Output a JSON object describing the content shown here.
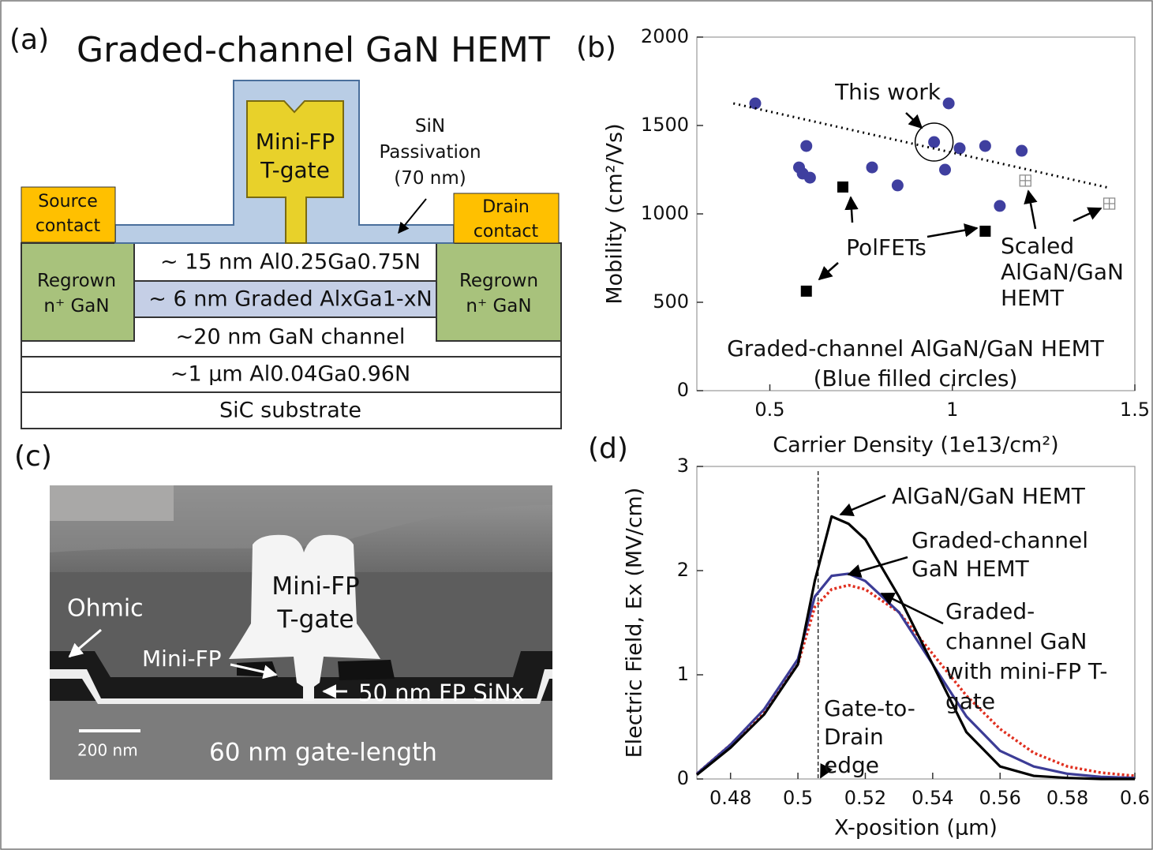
{
  "panel_a": {
    "label": "(a)",
    "title": "Graded-channel GaN HEMT",
    "gate": "Mini-FP T-gate",
    "passivation": "SiN Passivation (70 nm)",
    "source": "Source contact",
    "drain": "Drain contact",
    "regrown": [
      "Regrown n⁺ GaN",
      "Regrown n⁺ GaN"
    ],
    "layers": [
      "~ 15 nm Al0.25Ga0.75N",
      "~ 6 nm Graded AlxGa1-xN",
      "~20 nm GaN channel",
      "~1 µm Al0.04Ga0.96N",
      "SiC substrate"
    ]
  },
  "panel_c": {
    "label": "(c)",
    "ohmic": "Ohmic",
    "gate": "Mini-FP T-gate",
    "mini_fp": "Mini-FP",
    "sinx": "50 nm FP SiNx",
    "scale_bar": "200 nm",
    "gate_length": "60 nm gate-length"
  },
  "chart_data": [
    {
      "type": "scatter",
      "panel_label": "(b)",
      "xlabel": "Carrier Density (1e13/cm²)",
      "ylabel": "Mobility (cm²/Vs)",
      "xlim": [
        0.3,
        1.5
      ],
      "xticks": [
        0.5,
        1,
        1.5
      ],
      "ylim": [
        0,
        2000
      ],
      "yticks": [
        0,
        500,
        1000,
        1500,
        2000
      ],
      "annotations": [
        "This work",
        "(Blue filled circles)"
      ],
      "series": [
        {
          "name": "Graded-channel AlGaN/GaN HEMT",
          "color": "#3f3f9f",
          "marker": "circle",
          "x": [
            0.46,
            0.6,
            0.58,
            0.59,
            0.61,
            0.78,
            0.85,
            0.95,
            0.99,
            0.98,
            1.02,
            1.09,
            1.19,
            1.13
          ],
          "values": [
            1625,
            1384,
            1263,
            1228,
            1205,
            1263,
            1161,
            1406,
            1625,
            1250,
            1371,
            1384,
            1357,
            1045
          ]
        },
        {
          "name": "PolFETs",
          "color": "#000000",
          "marker": "square",
          "x": [
            0.7,
            1.09,
            0.6
          ],
          "values": [
            1152,
            902,
            563
          ]
        },
        {
          "name": "Scaled AlGaN/GaN HEMT",
          "color": "#8a8a8a",
          "marker": "crossed-square",
          "x": [
            1.2,
            1.43
          ],
          "values": [
            1188,
            1058
          ]
        },
        {
          "color": "#000000",
          "marker": "dotted-line",
          "x": [
            0.4,
            1.43
          ],
          "values": [
            1625,
            1147
          ]
        }
      ]
    },
    {
      "type": "line",
      "panel_label": "(d)",
      "xlabel": "X-position (µm)",
      "ylabel": "Electric Field, Ex (MV/cm)",
      "xlim": [
        0.47,
        0.6
      ],
      "xticks": [
        0.48,
        0.5,
        0.52,
        0.54,
        0.56,
        0.58,
        0.6
      ],
      "ylim": [
        0,
        3
      ],
      "yticks": [
        0,
        1,
        2,
        3
      ],
      "vline": {
        "x": 0.506,
        "label": "Gate-to-Drain edge"
      },
      "x": [
        0.47,
        0.48,
        0.49,
        0.5,
        0.505,
        0.51,
        0.515,
        0.52,
        0.53,
        0.54,
        0.55,
        0.56,
        0.57,
        0.58,
        0.59,
        0.6
      ],
      "series": [
        {
          "name": "AlGaN/GaN HEMT",
          "color": "#000000",
          "style": "solid",
          "values": [
            0.04,
            0.3,
            0.62,
            1.1,
            1.9,
            2.52,
            2.45,
            2.3,
            1.75,
            1.1,
            0.45,
            0.12,
            0.03,
            0.01,
            0,
            0
          ]
        },
        {
          "name": "Graded-channel GaN HEMT",
          "color": "#3c3c96",
          "style": "solid",
          "values": [
            0.05,
            0.33,
            0.67,
            1.15,
            1.75,
            1.95,
            1.97,
            1.9,
            1.6,
            1.1,
            0.6,
            0.27,
            0.12,
            0.05,
            0.02,
            0.01
          ]
        },
        {
          "name": "Graded-channel GaN with mini-FP T-gate",
          "color": "#e03020",
          "style": "dotted",
          "values": [
            0.05,
            0.33,
            0.65,
            1.1,
            1.65,
            1.82,
            1.86,
            1.82,
            1.6,
            1.2,
            0.8,
            0.48,
            0.25,
            0.12,
            0.06,
            0.03
          ]
        }
      ]
    }
  ]
}
